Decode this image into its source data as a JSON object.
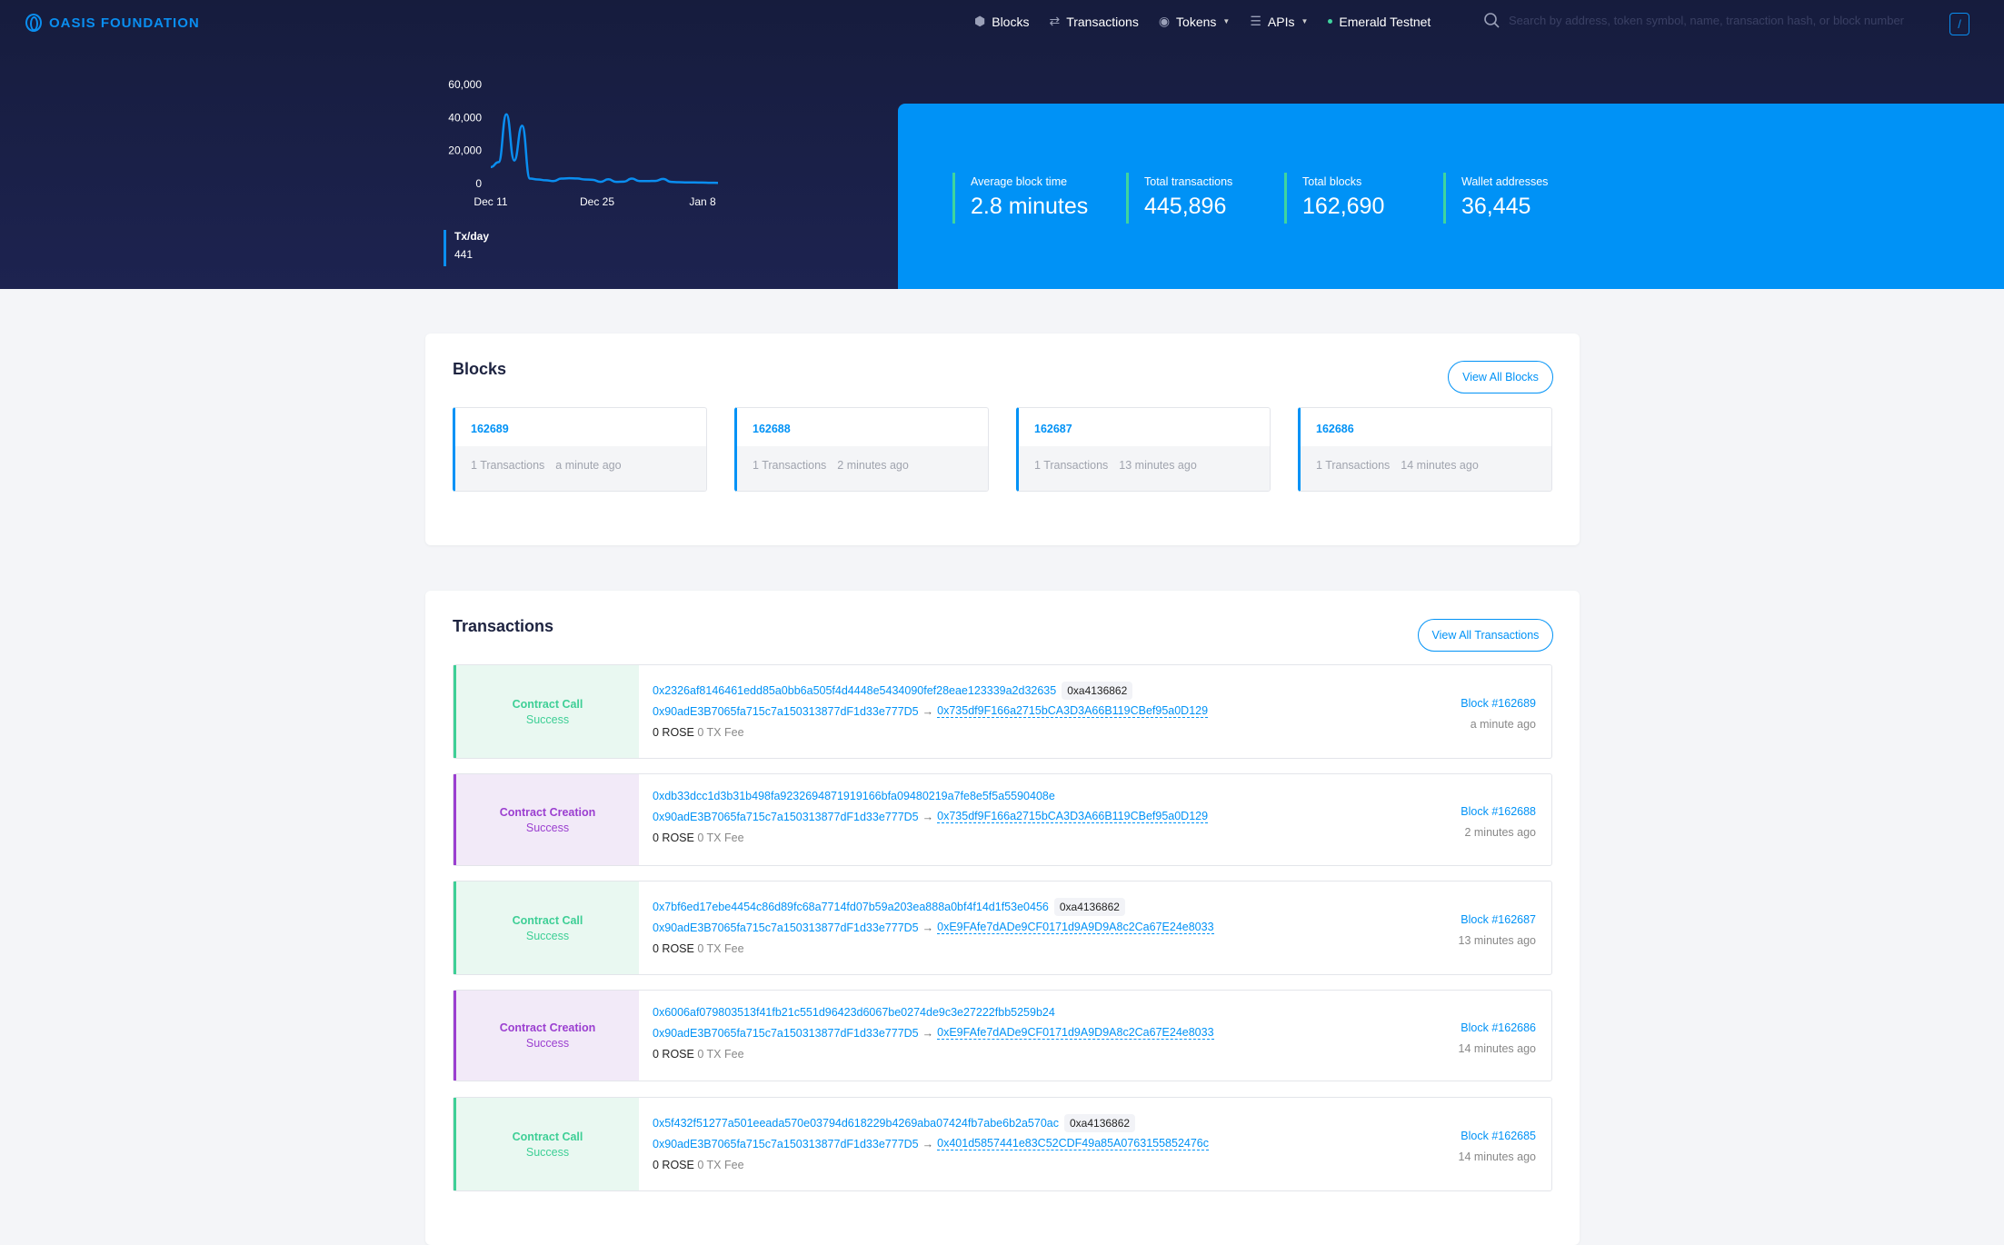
{
  "nav": {
    "logo": "OASIS FOUNDATION",
    "items": [
      {
        "label": "Blocks",
        "icon": "cube-icon"
      },
      {
        "label": "Transactions",
        "icon": "transfer-icon"
      },
      {
        "label": "Tokens",
        "icon": "coins-icon",
        "dropdown": true
      },
      {
        "label": "APIs",
        "icon": "sliders-icon",
        "dropdown": true
      }
    ],
    "network": "Emerald Testnet",
    "search_placeholder": "Search by address, token symbol, name, transaction hash, or block number",
    "shortcut": "/"
  },
  "chart_data": {
    "type": "line",
    "y_ticks": [
      "60,000",
      "40,000",
      "20,000",
      "0"
    ],
    "ylim": [
      0,
      60000
    ],
    "x_ticks": [
      "Dec 11",
      "Dec 25",
      "Jan 8"
    ],
    "series": [
      {
        "name": "Tx/day",
        "values": [
          10000,
          13000,
          42000,
          14000,
          35000,
          3000,
          2500,
          2000,
          1500,
          3000,
          3200,
          3100,
          2500,
          2300,
          1000,
          2600,
          1000,
          1200,
          3000,
          1500,
          1500,
          1600,
          2800,
          1000,
          800,
          700,
          700,
          600,
          500,
          441
        ]
      }
    ],
    "grid": false,
    "color": "#0a8ef0"
  },
  "legend": {
    "label": "Tx/day",
    "value": "441"
  },
  "stats": [
    {
      "label": "Average block time",
      "value": "2.8 minutes"
    },
    {
      "label": "Total transactions",
      "value": "445,896"
    },
    {
      "label": "Total blocks",
      "value": "162,690"
    },
    {
      "label": "Wallet addresses",
      "value": "36,445"
    }
  ],
  "blocks": {
    "title": "Blocks",
    "view_all": "View All Blocks",
    "items": [
      {
        "number": "162689",
        "txs": "1 Transactions",
        "time": "a minute ago"
      },
      {
        "number": "162688",
        "txs": "1 Transactions",
        "time": "2 minutes ago"
      },
      {
        "number": "162687",
        "txs": "1 Transactions",
        "time": "13 minutes ago"
      },
      {
        "number": "162686",
        "txs": "1 Transactions",
        "time": "14 minutes ago"
      }
    ]
  },
  "transactions": {
    "title": "Transactions",
    "view_all": "View All Transactions",
    "items": [
      {
        "type": "Contract Call",
        "status": "Success",
        "hash": "0x2326af8146461edd85a0bb6a505f4d4448e5434090fef28eae123339a2d32635",
        "method": "0xa4136862",
        "from": "0x90adE3B7065fa715c7a150313877dF1d33e777D5",
        "to": "0x735df9F166a2715bCA3D3A66B119CBef95a0D129",
        "amount": "0 ROSE",
        "fee": "0 TX Fee",
        "block": "Block #162689",
        "time": "a minute ago"
      },
      {
        "type": "Contract Creation",
        "status": "Success",
        "hash": "0xdb33dcc1d3b31b498fa9232694871919166bfa09480219a7fe8e5f5a5590408e",
        "method": "",
        "from": "0x90adE3B7065fa715c7a150313877dF1d33e777D5",
        "to": "0x735df9F166a2715bCA3D3A66B119CBef95a0D129",
        "amount": "0 ROSE",
        "fee": "0 TX Fee",
        "block": "Block #162688",
        "time": "2 minutes ago"
      },
      {
        "type": "Contract Call",
        "status": "Success",
        "hash": "0x7bf6ed17ebe4454c86d89fc68a7714fd07b59a203ea888a0bf4f14d1f53e0456",
        "method": "0xa4136862",
        "from": "0x90adE3B7065fa715c7a150313877dF1d33e777D5",
        "to": "0xE9FAfe7dADe9CF0171d9A9D9A8c2Ca67E24e8033",
        "amount": "0 ROSE",
        "fee": "0 TX Fee",
        "block": "Block #162687",
        "time": "13 minutes ago"
      },
      {
        "type": "Contract Creation",
        "status": "Success",
        "hash": "0x6006af079803513f41fb21c551d96423d6067be0274de9c3e27222fbb5259b24",
        "method": "",
        "from": "0x90adE3B7065fa715c7a150313877dF1d33e777D5",
        "to": "0xE9FAfe7dADe9CF0171d9A9D9A8c2Ca67E24e8033",
        "amount": "0 ROSE",
        "fee": "0 TX Fee",
        "block": "Block #162686",
        "time": "14 minutes ago"
      },
      {
        "type": "Contract Call",
        "status": "Success",
        "hash": "0x5f432f51277a501eeada570e03794d618229b4269aba07424fb7abe6b2a570ac",
        "method": "0xa4136862",
        "from": "0x90adE3B7065fa715c7a150313877dF1d33e777D5",
        "to": "0x401d5857441e83C52CDF49a85A0763155852476c",
        "amount": "0 ROSE",
        "fee": "0 TX Fee",
        "block": "Block #162685",
        "time": "14 minutes ago"
      }
    ]
  }
}
